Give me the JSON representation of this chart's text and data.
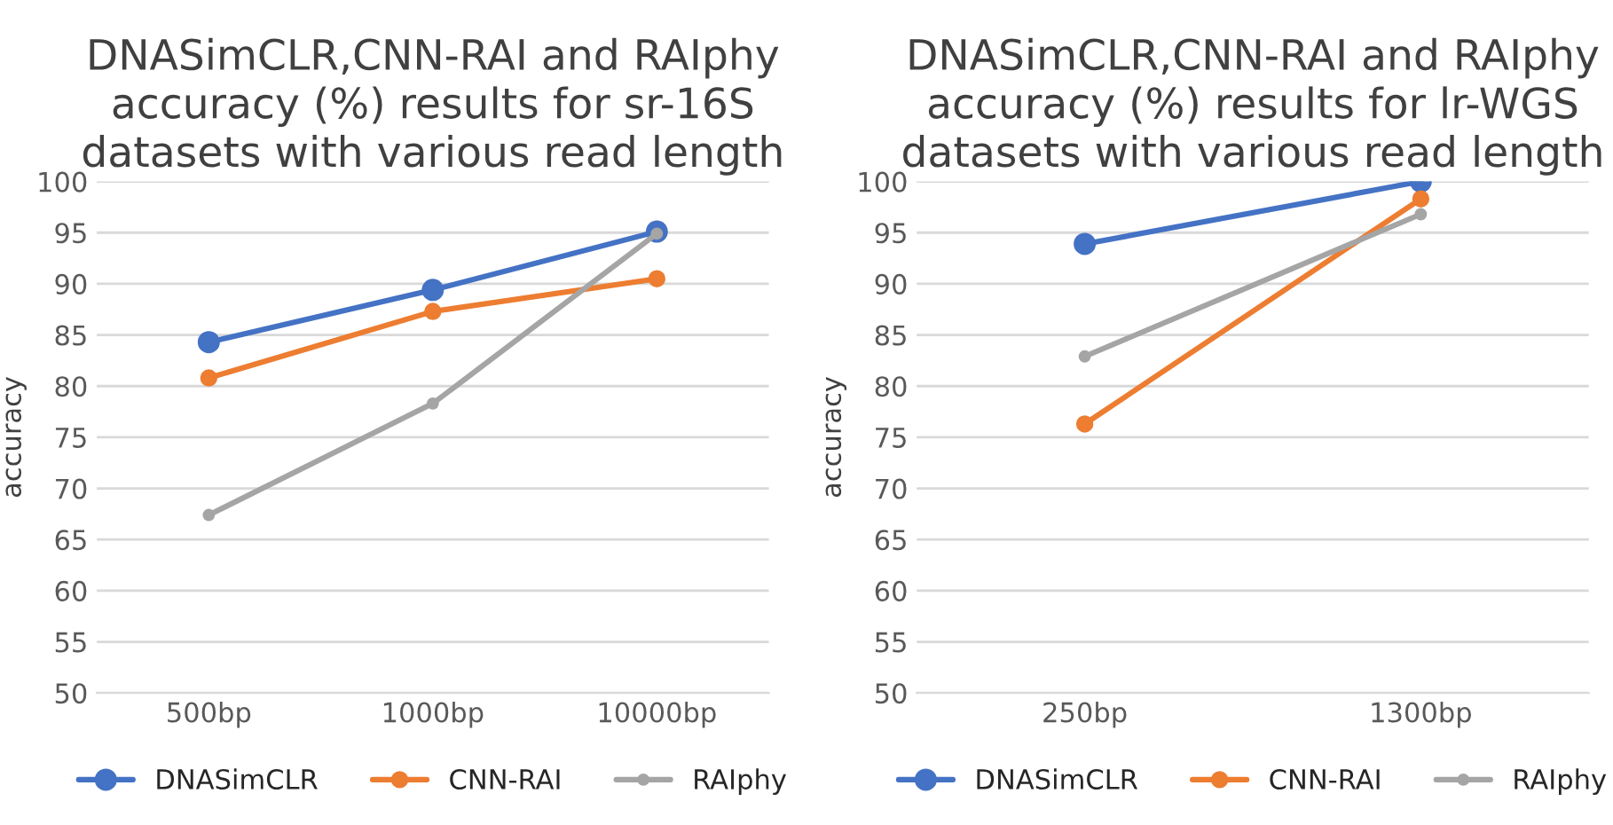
{
  "chart_data": [
    {
      "type": "line",
      "title": "DNASimCLR,CNN-RAI and RAIphy\naccuracy (%) results for sr-16S\ndatasets with various read length",
      "ylabel": "accuracy",
      "categories": [
        "500bp",
        "1000bp",
        "10000bp"
      ],
      "series": [
        {
          "name": "DNASimCLR",
          "color": "#4472c4",
          "values": [
            84.3,
            89.4,
            95.1
          ]
        },
        {
          "name": "CNN-RAI",
          "color": "#ed7d31",
          "values": [
            80.8,
            87.3,
            90.5
          ]
        },
        {
          "name": "RAIphy",
          "color": "#a5a5a5",
          "values": [
            67.4,
            78.3,
            94.9
          ]
        }
      ],
      "ylim": [
        50,
        100
      ],
      "yticks": [
        50,
        55,
        60,
        65,
        70,
        75,
        80,
        85,
        90,
        95,
        100
      ],
      "grid": "y",
      "legend": "bottom",
      "marker": "circle",
      "line_style": "solid"
    },
    {
      "type": "line",
      "title": "DNASimCLR,CNN-RAI and RAIphy\naccuracy (%) results for lr-WGS\ndatasets with various read length",
      "ylabel": "accuracy",
      "categories": [
        "250bp",
        "1300bp"
      ],
      "series": [
        {
          "name": "DNASimCLR",
          "color": "#4472c4",
          "values": [
            93.9,
            100
          ]
        },
        {
          "name": "CNN-RAI",
          "color": "#ed7d31",
          "values": [
            76.3,
            98.3
          ]
        },
        {
          "name": "RAIphy",
          "color": "#a5a5a5",
          "values": [
            82.9,
            96.8
          ]
        }
      ],
      "ylim": [
        50,
        100
      ],
      "yticks": [
        50,
        55,
        60,
        65,
        70,
        75,
        80,
        85,
        90,
        95,
        100
      ],
      "grid": "y",
      "legend": "bottom",
      "marker": "circle",
      "line_style": "solid"
    }
  ]
}
